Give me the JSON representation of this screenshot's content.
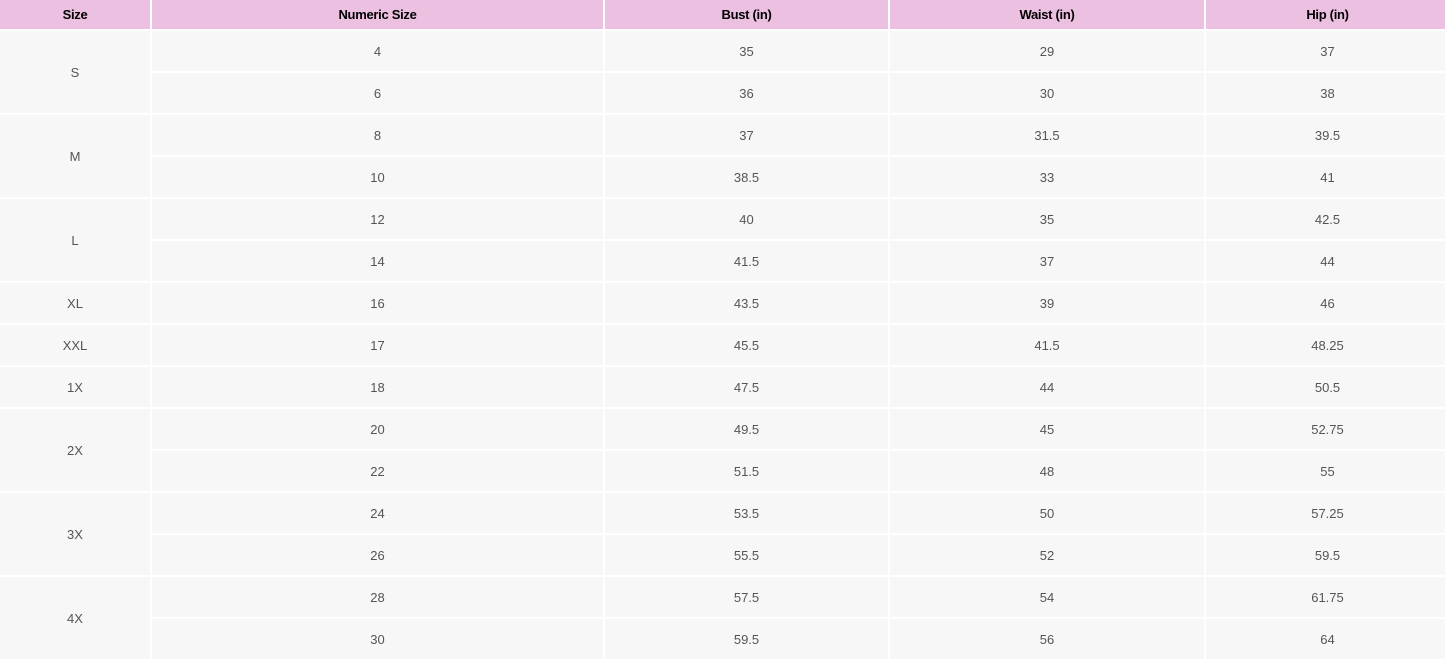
{
  "headers": [
    "Size",
    "Numeric Size",
    "Bust (in)",
    "Waist (in)",
    "Hip (in)"
  ],
  "groups": [
    {
      "size": "S",
      "rows": [
        [
          "4",
          "35",
          "29",
          "37"
        ],
        [
          "6",
          "36",
          "30",
          "38"
        ]
      ]
    },
    {
      "size": "M",
      "rows": [
        [
          "8",
          "37",
          "31.5",
          "39.5"
        ],
        [
          "10",
          "38.5",
          "33",
          "41"
        ]
      ]
    },
    {
      "size": "L",
      "rows": [
        [
          "12",
          "40",
          "35",
          "42.5"
        ],
        [
          "14",
          "41.5",
          "37",
          "44"
        ]
      ]
    },
    {
      "size": "XL",
      "rows": [
        [
          "16",
          "43.5",
          "39",
          "46"
        ]
      ]
    },
    {
      "size": "XXL",
      "rows": [
        [
          "17",
          "45.5",
          "41.5",
          "48.25"
        ]
      ]
    },
    {
      "size": "1X",
      "rows": [
        [
          "18",
          "47.5",
          "44",
          "50.5"
        ]
      ]
    },
    {
      "size": "2X",
      "rows": [
        [
          "20",
          "49.5",
          "45",
          "52.75"
        ],
        [
          "22",
          "51.5",
          "48",
          "55"
        ]
      ]
    },
    {
      "size": "3X",
      "rows": [
        [
          "24",
          "53.5",
          "50",
          "57.25"
        ],
        [
          "26",
          "55.5",
          "52",
          "59.5"
        ]
      ]
    },
    {
      "size": "4X",
      "rows": [
        [
          "28",
          "57.5",
          "54",
          "61.75"
        ],
        [
          "30",
          "59.5",
          "56",
          "64"
        ]
      ]
    }
  ],
  "colors": {
    "header_bg": "#ecc0e0",
    "cell_bg": "#f7f7f7"
  }
}
